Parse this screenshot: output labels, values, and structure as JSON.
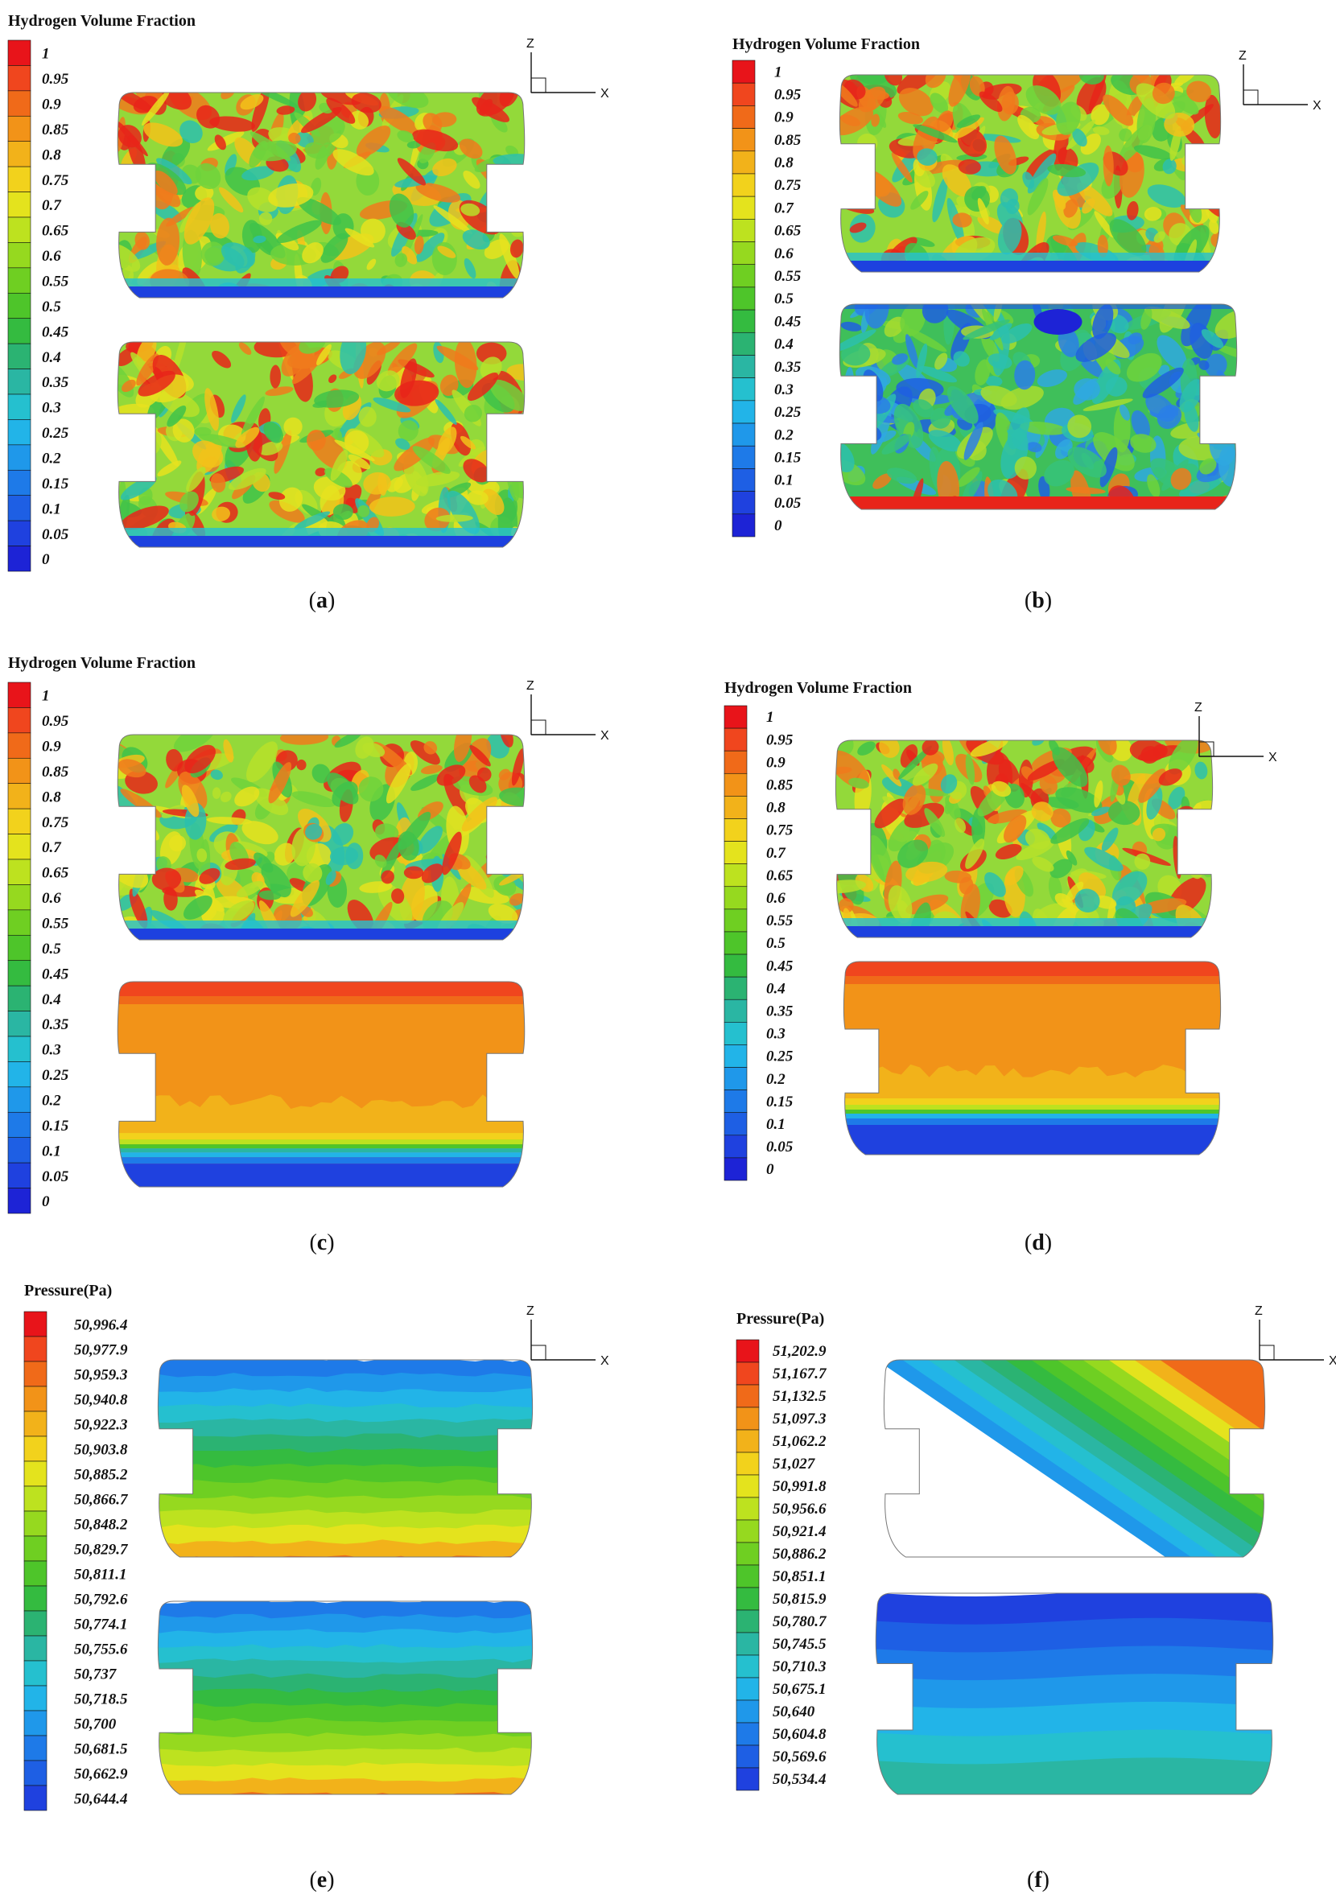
{
  "panels": [
    {
      "id": "a",
      "caption": "a",
      "colorbar": {
        "title": "Hydrogen Volume Fraction",
        "labels": [
          "1",
          "0.95",
          "0.9",
          "0.85",
          "0.8",
          "0.75",
          "0.7",
          "0.65",
          "0.6",
          "0.55",
          "0.5",
          "0.45",
          "0.4",
          "0.35",
          "0.3",
          "0.25",
          "0.2",
          "0.15",
          "0.1",
          "0.05",
          "0"
        ]
      },
      "axes": {
        "z": "Z",
        "x": "X"
      },
      "tanks": [
        {
          "pattern": "mixed-high"
        },
        {
          "pattern": "mixed-high"
        }
      ]
    },
    {
      "id": "b",
      "caption": "b",
      "colorbar": {
        "title": "Hydrogen Volume Fraction",
        "labels": [
          "1",
          "0.95",
          "0.9",
          "0.85",
          "0.8",
          "0.75",
          "0.7",
          "0.65",
          "0.6",
          "0.55",
          "0.5",
          "0.45",
          "0.4",
          "0.35",
          "0.3",
          "0.25",
          "0.2",
          "0.15",
          "0.1",
          "0.05",
          "0"
        ]
      },
      "axes": {
        "z": "Z",
        "x": "X"
      },
      "tanks": [
        {
          "pattern": "mixed-high"
        },
        {
          "pattern": "mixed-low"
        }
      ]
    },
    {
      "id": "c",
      "caption": "c",
      "colorbar": {
        "title": "Hydrogen Volume Fraction",
        "labels": [
          "1",
          "0.95",
          "0.9",
          "0.85",
          "0.8",
          "0.75",
          "0.7",
          "0.65",
          "0.6",
          "0.55",
          "0.5",
          "0.45",
          "0.4",
          "0.35",
          "0.3",
          "0.25",
          "0.2",
          "0.15",
          "0.1",
          "0.05",
          "0"
        ]
      },
      "axes": {
        "z": "Z",
        "x": "X"
      },
      "tanks": [
        {
          "pattern": "mixed-high"
        },
        {
          "pattern": "stratified"
        }
      ]
    },
    {
      "id": "d",
      "caption": "d",
      "colorbar": {
        "title": "Hydrogen Volume Fraction",
        "labels": [
          "1",
          "0.95",
          "0.9",
          "0.85",
          "0.8",
          "0.75",
          "0.7",
          "0.65",
          "0.6",
          "0.55",
          "0.5",
          "0.45",
          "0.4",
          "0.35",
          "0.3",
          "0.25",
          "0.2",
          "0.15",
          "0.1",
          "0.05",
          "0"
        ]
      },
      "axes": {
        "z": "Z",
        "x": "X"
      },
      "tanks": [
        {
          "pattern": "mixed-high"
        },
        {
          "pattern": "stratified-orange"
        }
      ]
    },
    {
      "id": "e",
      "caption": "e",
      "colorbar": {
        "title": "Pressure(Pa)",
        "labels": [
          "50,996.4",
          "50,977.9",
          "50,959.3",
          "50,940.8",
          "50,922.3",
          "50,903.8",
          "50,885.2",
          "50,866.7",
          "50,848.2",
          "50,829.7",
          "50,811.1",
          "50,792.6",
          "50,774.1",
          "50,755.6",
          "50,737",
          "50,718.5",
          "50,700",
          "50,681.5",
          "50,662.9",
          "50,644.4"
        ]
      },
      "axes": {
        "z": "Z",
        "x": "X"
      },
      "tanks": [
        {
          "pattern": "pressure-e"
        },
        {
          "pattern": "pressure-e"
        }
      ]
    },
    {
      "id": "f",
      "caption": "f",
      "colorbar": {
        "title": "Pressure(Pa)",
        "labels": [
          "51,202.9",
          "51,167.7",
          "51,132.5",
          "51,097.3",
          "51,062.2",
          "51,027",
          "50,991.8",
          "50,956.6",
          "50,921.4",
          "50,886.2",
          "50,851.1",
          "50,815.9",
          "50,780.7",
          "50,745.5",
          "50,710.3",
          "50,675.1",
          "50,640",
          "50,604.8",
          "50,569.6",
          "50,534.4"
        ]
      },
      "axes": {
        "z": "Z",
        "x": "X"
      },
      "tanks": [
        {
          "pattern": "pressure-f-top"
        },
        {
          "pattern": "pressure-f-bottom"
        }
      ]
    }
  ]
}
